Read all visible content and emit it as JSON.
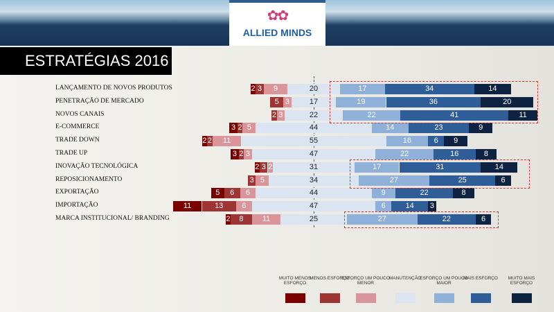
{
  "header": {
    "brand": "ALLIED MINDS",
    "title": "ESTRATÉGIAS 2016"
  },
  "chart_data": {
    "type": "bar",
    "stacked": true,
    "diverging": true,
    "title": "ESTRATÉGIAS 2016",
    "categories": [
      "Lançamento de novos produtos",
      "Penetração de mercado",
      "Novos canais",
      "E-commerce",
      "Trade down",
      "Trade up",
      "Inovação tecnológica",
      "Reposicionamento",
      "Exportação",
      "Importação",
      "Marca institucional/ branding"
    ],
    "series": [
      {
        "name": "Muito menos esforço",
        "color": "#7a0000",
        "values": [
          2,
          0,
          0,
          3,
          2,
          3,
          2,
          0,
          5,
          11,
          2
        ]
      },
      {
        "name": "Menos esforço",
        "color": "#9e3535",
        "values": [
          3,
          5,
          2,
          2,
          2,
          2,
          3,
          3,
          6,
          13,
          8
        ]
      },
      {
        "name": "Esforço um pouco menor",
        "color": "#d9959a",
        "values": [
          9,
          3,
          3,
          5,
          11,
          3,
          2,
          5,
          6,
          6,
          11
        ]
      },
      {
        "name": "Manutenção",
        "color": "#dbe5f2",
        "values": [
          20,
          17,
          22,
          44,
          55,
          47,
          31,
          34,
          44,
          47,
          25
        ]
      },
      {
        "name": "Esforço um pouco maior",
        "color": "#8fb0d8",
        "values": [
          17,
          19,
          22,
          14,
          16,
          22,
          17,
          27,
          9,
          6,
          27
        ]
      },
      {
        "name": "Mais esforço",
        "color": "#2f5d97",
        "values": [
          34,
          36,
          41,
          23,
          6,
          16,
          31,
          25,
          22,
          14,
          22
        ]
      },
      {
        "name": "Muito mais esforço",
        "color": "#0e2341",
        "values": [
          14,
          20,
          11,
          9,
          9,
          8,
          14,
          6,
          8,
          3,
          6
        ]
      }
    ],
    "highlighted_groups": [
      [
        0,
        2
      ],
      [
        6,
        7
      ],
      [
        10,
        10
      ]
    ],
    "legend_position": "bottom-right"
  }
}
